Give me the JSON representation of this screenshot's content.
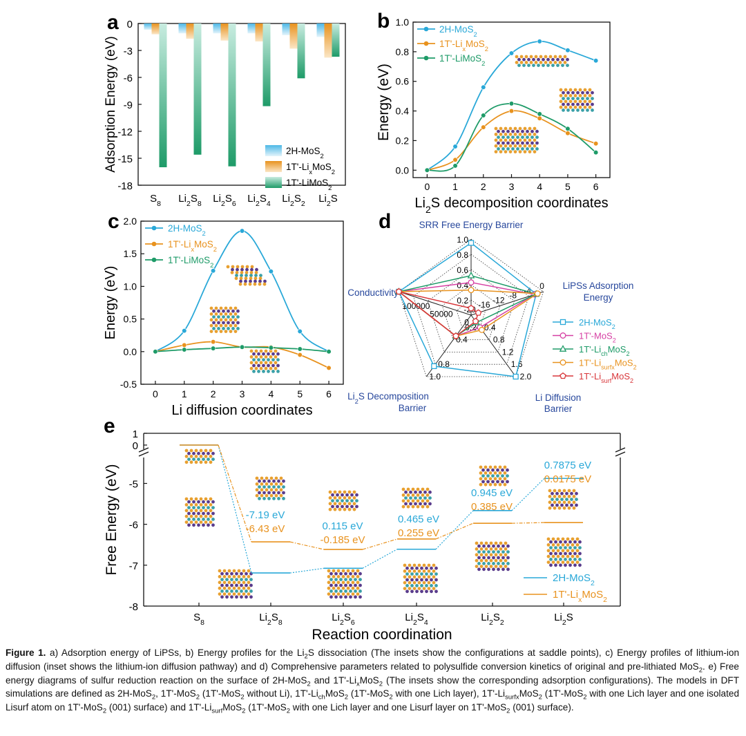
{
  "figure": {
    "panel_labels": {
      "a": "a",
      "b": "b",
      "c": "c",
      "d": "d",
      "e": "e"
    },
    "legend_a": [
      "2H-MoS2",
      "1T'-LixMoS2",
      "1T'-LiMoS2"
    ],
    "legend_d": [
      "2H-MoS2",
      "1T'-MoS2",
      "1T'-LichMoS2",
      "1T'-LisurfxMoS2",
      "1T'-LisurfMoS2"
    ]
  },
  "colors": {
    "blue": "#29a8d8",
    "orange": "#e8921e",
    "green": "#1e9b68",
    "magenta": "#d63fa3",
    "red": "#d8363a",
    "axis": "#111111",
    "radar_label": "#27479c"
  },
  "chart_data": [
    {
      "panel": "a",
      "type": "bar",
      "categories": [
        "S8",
        "Li2S8",
        "Li2S6",
        "Li2S4",
        "Li2S2",
        "Li2S"
      ],
      "series": [
        {
          "name": "2H-MoS2",
          "values": [
            -0.7,
            -1.1,
            -1.1,
            -1.1,
            -1.3,
            -1.5
          ]
        },
        {
          "name": "1T'-LixMoS2",
          "values": [
            -1.2,
            -1.7,
            -1.9,
            -2.0,
            -2.8,
            -3.8
          ]
        },
        {
          "name": "1T'-LiMoS2",
          "values": [
            -16.0,
            -14.6,
            -15.9,
            -9.2,
            -6.1,
            -3.7
          ]
        }
      ],
      "ylabel": "Adsorption Energy (eV)",
      "ylim": [
        -18,
        0
      ],
      "yticks": [
        "0",
        "-3",
        "-6",
        "-9",
        "-12",
        "-15",
        "-18"
      ]
    },
    {
      "panel": "b",
      "type": "line",
      "x": [
        0,
        1,
        2,
        3,
        4,
        5,
        6
      ],
      "series": [
        {
          "name": "2H-MoS2",
          "values": [
            0.0,
            0.16,
            0.56,
            0.79,
            0.87,
            0.81,
            0.74
          ]
        },
        {
          "name": "1T'-LixMoS2",
          "values": [
            0.0,
            0.07,
            0.29,
            0.4,
            0.35,
            0.25,
            0.18
          ]
        },
        {
          "name": "1T'-LiMoS2",
          "values": [
            0.0,
            0.03,
            0.37,
            0.45,
            0.38,
            0.28,
            0.12
          ]
        }
      ],
      "xlabel": "Li2S decomposition coordinates",
      "ylabel": "Energy (eV)",
      "ylim": [
        -0.05,
        1.0
      ],
      "yticks": [
        "0.0",
        "0.2",
        "0.4",
        "0.6",
        "0.8",
        "1.0"
      ],
      "xticks": [
        "0",
        "1",
        "2",
        "3",
        "4",
        "5",
        "6"
      ]
    },
    {
      "panel": "c",
      "type": "line",
      "x": [
        0,
        1,
        2,
        3,
        4,
        5,
        6
      ],
      "series": [
        {
          "name": "2H-MoS2",
          "values": [
            0.0,
            0.32,
            1.24,
            1.85,
            1.23,
            0.31,
            0.0
          ]
        },
        {
          "name": "1T'-LixMoS2",
          "values": [
            0.0,
            0.1,
            0.15,
            0.07,
            0.07,
            -0.05,
            -0.25
          ]
        },
        {
          "name": "1T'-LiMoS2",
          "values": [
            0.0,
            0.03,
            0.05,
            0.07,
            0.06,
            0.04,
            0.0
          ]
        }
      ],
      "xlabel": "Li diffusion coordinates",
      "ylabel": "Energy (eV)",
      "ylim": [
        -0.5,
        2.0
      ],
      "yticks": [
        "-0.5",
        "0.0",
        "0.5",
        "1.0",
        "1.5",
        "2.0"
      ],
      "xticks": [
        "0",
        "1",
        "2",
        "3",
        "4",
        "5",
        "6"
      ]
    },
    {
      "panel": "d",
      "type": "radar",
      "axes": [
        "SRR Free Energy Barrier",
        "LiPSs Adsorption Energy",
        "Li Diffusion Barrier",
        "Li2S Decomposition Barrier",
        "Conductivity"
      ],
      "series": [
        {
          "name": "2H-MoS2",
          "values": [
            0.95,
            0.9,
            1.0,
            0.83,
            1.0
          ]
        },
        {
          "name": "1T'-MoS2",
          "values": [
            0.43,
            0.88,
            0.2,
            0.34,
            1.0
          ]
        },
        {
          "name": "1T'-LichMoS2",
          "values": [
            0.52,
            0.9,
            0.12,
            0.34,
            1.0
          ]
        },
        {
          "name": "1T'-LisurfxMoS2",
          "values": [
            0.33,
            0.92,
            0.24,
            0.34,
            1.0
          ]
        },
        {
          "name": "1T'-LisurfMoS2",
          "values": [
            0.09,
            0.1,
            0.1,
            0.34,
            1.0
          ]
        }
      ],
      "tick_labels": {
        "srr": [
          "1.0",
          "0.8",
          "0.6",
          "0.4",
          "0.2"
        ],
        "lips": [
          "0",
          "-4",
          "-8",
          "-12",
          "-16",
          "-20"
        ],
        "li_diff": [
          "2.0",
          "1.6",
          "1.2",
          "0.8",
          "0.4"
        ],
        "li2s": [
          "1.0",
          "0.8",
          "0.4",
          "0.2"
        ],
        "cond": [
          "100000",
          "50000",
          "0"
        ]
      }
    },
    {
      "panel": "e",
      "type": "line",
      "categories": [
        "S8",
        "Li2S8",
        "Li2S6",
        "Li2S4",
        "Li2S2",
        "Li2S"
      ],
      "series": [
        {
          "name": "2H-MoS2",
          "values": [
            0.0,
            -7.19,
            -7.075,
            -6.61,
            -5.665,
            -4.8775
          ]
        },
        {
          "name": "1T'-LixMoS2",
          "values": [
            0.0,
            -6.43,
            -6.615,
            -6.36,
            -5.975,
            -5.9575
          ]
        }
      ],
      "annotations": [
        {
          "top": "-7.19 eV",
          "bottom": "-6.43 eV"
        },
        {
          "top": "0.115 eV",
          "bottom": "-0.185 eV"
        },
        {
          "top": "0.465 eV",
          "bottom": "0.255 eV"
        },
        {
          "top": "0.945 eV",
          "bottom": "0.385 eV"
        },
        {
          "top": "0.7875 eV",
          "bottom": "0.0175 eV"
        }
      ],
      "xlabel": "Reaction coordination",
      "ylabel": "Free Energy (eV)",
      "ylim": [
        -8,
        1
      ],
      "yticks": [
        "1",
        "0",
        "-5",
        "-6",
        "-7",
        "-8"
      ]
    }
  ],
  "caption": {
    "label": "Figure 1.",
    "text": "a) Adsorption energy of LiPSs, b) Energy profiles for the Li2S dissociation (The insets show the configurations at saddle points), c) Energy profiles of lithium-ion diffusion (inset shows the lithium-ion diffusion pathway) and d) Comprehensive parameters related to polysulfide conversion kinetics of original and pre-lithiated MoS2. e) Free energy diagrams of sulfur reduction reaction on the surface of 2H-MoS2 and 1T'-LixMoS2 (The insets show the corresponding adsorption configurations). The models in DFT simulations are defined as 2H-MoS2, 1T'-MoS2 (1T'-MoS2 without Li), 1T'-LichMoS2 (1T'-MoS2 with one Lich layer), 1T'-LisurfxMoS2 (1T'-MoS2 with one Lich layer and one isolated Lisurf atom on 1T'-MoS2 (001) surface) and 1T'-LisurfMoS2 (1T'-MoS2 with one Lich layer and one Lisurf layer on 1T'-MoS2 (001) surface)."
  }
}
